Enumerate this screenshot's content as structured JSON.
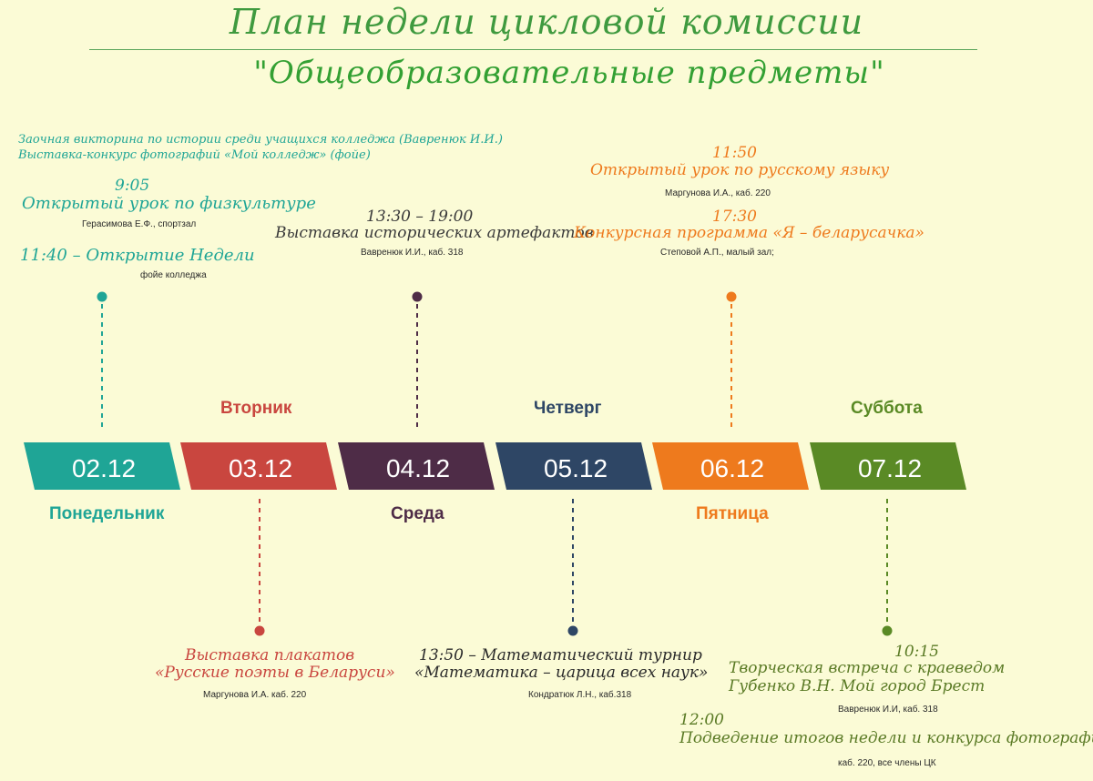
{
  "header": {
    "title": "План недели цикловой комиссии",
    "subtitle": "\"Общеобразовательные предметы\""
  },
  "colors": {
    "monday": "#1fa596",
    "tuesday": "#c9463f",
    "wednesday": "#4e2c47",
    "thursday": "#2e4665",
    "friday": "#ee7a1d",
    "saturday": "#5a8a25",
    "title": "#3f9a3f",
    "background": "#fbfbd6"
  },
  "days": [
    {
      "date": "02.12",
      "name": "Понедельник",
      "color": "#1fa596"
    },
    {
      "date": "03.12",
      "name": "Вторник",
      "color": "#c9463f"
    },
    {
      "date": "04.12",
      "name": "Среда",
      "color": "#4e2c47"
    },
    {
      "date": "05.12",
      "name": "Четверг",
      "color": "#2e4665"
    },
    {
      "date": "06.12",
      "name": "Пятница",
      "color": "#ee7a1d"
    },
    {
      "date": "07.12",
      "name": "Суббота",
      "color": "#5a8a25"
    }
  ],
  "monday": {
    "quiz": "Заочная викторина по истории среди учащихся колледжа (Вавренюк И.И.)",
    "contest": "Выставка-конкурс фотографий «Мой колледж» (фойе)",
    "pe_time": "9:05",
    "pe_title": "Открытый урок по физкультуре",
    "pe_who": "Герасимова Е.Ф., спортзал",
    "open_title": "11:40 – Открытие Недели",
    "open_who": "фойе колледжа"
  },
  "tuesday": {
    "title1": "Выставка плакатов",
    "title2": "«Русские поэты в Беларуси»",
    "who": "Маргунова И.А. каб. 220"
  },
  "wednesday": {
    "time": "13:30 – 19:00",
    "title": "Выставка исторических артефактов",
    "who": "Вавренюк И.И., каб. 318"
  },
  "thursday": {
    "title1": "13:50 – Математический турнир",
    "title2": "«Математика – царица всех наук»",
    "who": "Кондратюк Л.Н., каб.318"
  },
  "friday": {
    "time1": "11:50",
    "title1": "Открытый урок по русскому языку",
    "who1": "Маргунова И.А., каб. 220",
    "time2": "17:30",
    "title2": "Конкурсная программа «Я – беларусачка»",
    "who2": "Степовой А.П., малый зал;"
  },
  "saturday": {
    "time1": "10:15",
    "title1a": "Творческая встреча с краеведом",
    "title1b": "Губенко В.Н. Мой город Брест",
    "who1": "Вавренюк И.И, каб. 318",
    "time2": "12:00",
    "title2": "Подведение итогов недели и конкурса фотографий",
    "who2": "каб. 220, все члены ЦК"
  }
}
